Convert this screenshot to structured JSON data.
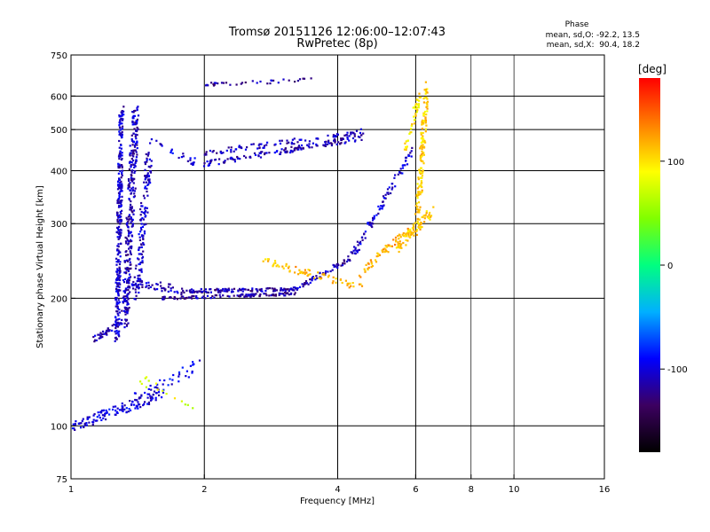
{
  "chart_data": {
    "type": "scatter",
    "title": "Tromsø 20151126 12:06:00–12:07:43",
    "subtitle": "RwPretec (8p)",
    "xlabel": "Frequency [MHz]",
    "ylabel": "Stationary phase Virtual Height [km]",
    "x_scale": "log",
    "y_scale": "log",
    "xlim": [
      1,
      16
    ],
    "ylim": [
      75,
      750
    ],
    "x_ticks": [
      1,
      2,
      4,
      6,
      8,
      10,
      16
    ],
    "y_ticks": [
      75,
      100,
      200,
      300,
      400,
      500,
      600,
      750
    ],
    "x_major_gridlines": [
      2,
      4,
      6
    ],
    "x_minor_gridlines": [
      8,
      10
    ],
    "y_gridlines": [
      100,
      200,
      300,
      400,
      500,
      600
    ],
    "grid": true,
    "phase_info": {
      "heading": "Phase",
      "line_o": "mean, sd,O: -92.2, 13.5",
      "line_x": "mean, sd,X:  90.4, 18.2"
    },
    "colorbar": {
      "unit_label": "[deg]",
      "range": [
        -180,
        180
      ],
      "ticks": [
        100,
        0,
        -100
      ],
      "colors": [
        "#000000",
        "#3c0060",
        "#0000ff",
        "#00b0ff",
        "#00ff80",
        "#80ff00",
        "#ffff00",
        "#ff8000",
        "#ff0000"
      ]
    },
    "series": [
      {
        "traces": [
          {
            "f0": 1.27,
            "f1": 1.3,
            "h0": 160,
            "h1": 560,
            "phase": -105,
            "n": 300,
            "spread": 0.06
          },
          {
            "f0": 1.32,
            "f1": 1.4,
            "h0": 170,
            "h1": 560,
            "phase": -110,
            "n": 300,
            "spread": 0.09
          },
          {
            "f0": 1.4,
            "f1": 1.5,
            "h0": 200,
            "h1": 430,
            "phase": -105,
            "n": 140,
            "spread": 0.09
          },
          {
            "f0": 1.12,
            "f1": 1.3,
            "h0": 160,
            "h1": 175,
            "phase": -110,
            "n": 40,
            "spread": 0.03
          },
          {
            "f0": 1.32,
            "f1": 1.8,
            "h0": 220,
            "h1": 208,
            "phase": -110,
            "n": 60,
            "spread": 0.05
          },
          {
            "f0": 1.8,
            "f1": 3.2,
            "h0": 208,
            "h1": 210,
            "phase": -115,
            "n": 120,
            "spread": 0.02
          },
          {
            "f0": 1.6,
            "f1": 3.2,
            "h0": 200,
            "h1": 205,
            "phase": -115,
            "n": 110,
            "spread": 0.015
          },
          {
            "f0": 3.2,
            "f1": 4.3,
            "h0": 210,
            "h1": 250,
            "phase": -110,
            "n": 60,
            "spread": 0.03
          },
          {
            "f0": 4.3,
            "f1": 5.4,
            "h0": 250,
            "h1": 380,
            "phase": -105,
            "n": 70,
            "spread": 0.04
          },
          {
            "f0": 5.4,
            "f1": 5.9,
            "h0": 380,
            "h1": 450,
            "phase": -105,
            "n": 25,
            "spread": 0.04
          },
          {
            "f0": 2.0,
            "f1": 4.6,
            "h0": 415,
            "h1": 480,
            "phase": -110,
            "n": 140,
            "spread": 0.03
          },
          {
            "f0": 2.0,
            "f1": 4.6,
            "h0": 440,
            "h1": 495,
            "phase": -110,
            "n": 90,
            "spread": 0.03
          },
          {
            "f0": 1.5,
            "f1": 1.9,
            "h0": 470,
            "h1": 420,
            "phase": -100,
            "n": 25,
            "spread": 0.04
          },
          {
            "f0": 2.0,
            "f1": 3.5,
            "h0": 640,
            "h1": 655,
            "phase": -115,
            "n": 35,
            "spread": 0.02
          },
          {
            "f0": 1.0,
            "f1": 1.6,
            "h0": 100,
            "h1": 118,
            "phase": -100,
            "n": 120,
            "spread": 0.06
          },
          {
            "f0": 1.4,
            "f1": 1.95,
            "h0": 115,
            "h1": 140,
            "phase": -95,
            "n": 50,
            "spread": 0.08
          },
          {
            "f0": 2.7,
            "f1": 4.6,
            "h0": 245,
            "h1": 212,
            "phase": 115,
            "n": 70,
            "spread": 0.04
          },
          {
            "f0": 4.5,
            "f1": 5.8,
            "h0": 230,
            "h1": 290,
            "phase": 120,
            "n": 60,
            "spread": 0.05
          },
          {
            "f0": 5.4,
            "f1": 6.5,
            "h0": 260,
            "h1": 320,
            "phase": 110,
            "n": 80,
            "spread": 0.06
          },
          {
            "f0": 6.05,
            "f1": 6.35,
            "h0": 300,
            "h1": 640,
            "phase": 105,
            "n": 140,
            "spread": 0.06
          },
          {
            "f0": 5.7,
            "f1": 6.1,
            "h0": 450,
            "h1": 600,
            "phase": 100,
            "n": 40,
            "spread": 0.05
          },
          {
            "f0": 1.4,
            "f1": 1.95,
            "h0": 130,
            "h1": 110,
            "phase": 80,
            "n": 15,
            "spread": 0.06
          }
        ]
      }
    ]
  }
}
